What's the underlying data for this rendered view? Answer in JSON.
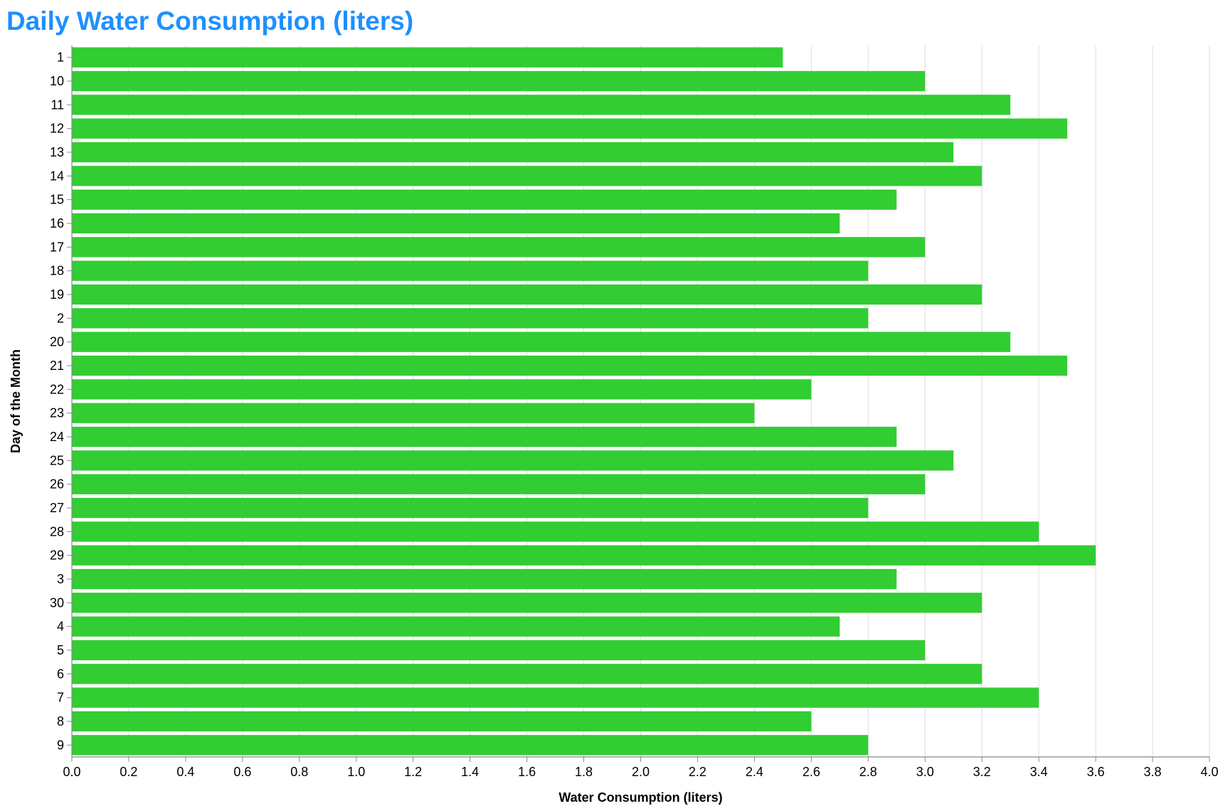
{
  "chart_data": {
    "type": "bar",
    "orientation": "horizontal",
    "title": "Daily Water Consumption (liters)",
    "xlabel": "Water Consumption (liters)",
    "ylabel": "Day of the Month",
    "categories": [
      "1",
      "10",
      "11",
      "12",
      "13",
      "14",
      "15",
      "16",
      "17",
      "18",
      "19",
      "2",
      "20",
      "21",
      "22",
      "23",
      "24",
      "25",
      "26",
      "27",
      "28",
      "29",
      "3",
      "30",
      "4",
      "5",
      "6",
      "7",
      "8",
      "9"
    ],
    "values": [
      2.5,
      3.0,
      3.3,
      3.5,
      3.1,
      3.2,
      2.9,
      2.7,
      3.0,
      2.8,
      3.2,
      2.8,
      3.3,
      3.5,
      2.6,
      2.4,
      2.9,
      3.1,
      3.0,
      2.8,
      3.4,
      3.6,
      2.9,
      3.2,
      2.7,
      3.0,
      3.2,
      3.4,
      2.6,
      2.8
    ],
    "xlim": [
      0,
      4.0
    ],
    "x_ticks": [
      "0.0",
      "0.2",
      "0.4",
      "0.6",
      "0.8",
      "1.0",
      "1.2",
      "1.4",
      "1.6",
      "1.8",
      "2.0",
      "2.2",
      "2.4",
      "2.6",
      "2.8",
      "3.0",
      "3.2",
      "3.4",
      "3.6",
      "3.8",
      "4.0"
    ],
    "grid": "vertical gridlines on",
    "legend": "none",
    "colors": {
      "bar": "#32CD32",
      "title": "#1E90FF",
      "grid": "#dddddd",
      "axis": "#888888"
    }
  }
}
